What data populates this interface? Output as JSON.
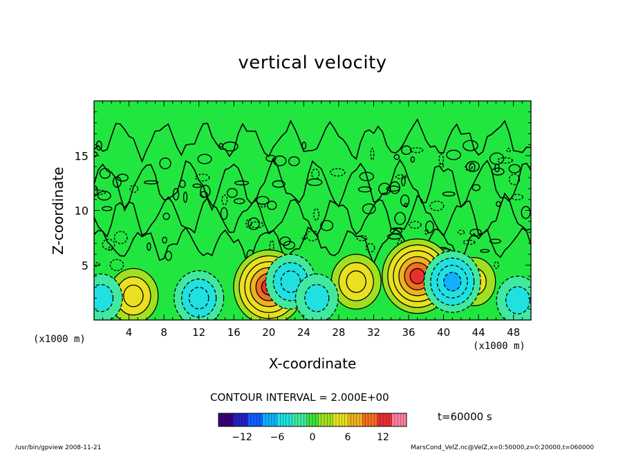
{
  "window": {
    "footer_left": "/usr/bin/gpview   2008-11-21",
    "footer_right": "MarsCond_VelZ.nc@VelZ,x=0:50000,z=0:20000,t=060000"
  },
  "chart_data": {
    "type": "heatmap",
    "title": "vertical velocity",
    "xlabel": "X-coordinate",
    "ylabel": "Z-coordinate",
    "x_unit_left": "(x1000 m)",
    "x_unit_right": "(x1000 m)",
    "xlim": [
      0,
      50
    ],
    "ylim": [
      0,
      20
    ],
    "x_ticks": [
      4,
      8,
      12,
      16,
      20,
      24,
      28,
      32,
      36,
      40,
      44,
      48
    ],
    "y_ticks": [
      5,
      10,
      15
    ],
    "contour_interval_label": "CONTOUR INTERVAL = 2.000E+00",
    "time_label": "t=60000 s",
    "colorbar": {
      "min": -16,
      "max": 16,
      "tick_values": [
        -12,
        -6,
        0,
        6,
        12
      ],
      "tick_labels": [
        "−12",
        "−6",
        "0",
        "6",
        "12"
      ],
      "colors": [
        "#3a007a",
        "#2a20c0",
        "#1060ff",
        "#10b0ff",
        "#20e0e0",
        "#40e8a0",
        "#40e040",
        "#a0e020",
        "#e8e020",
        "#f0b020",
        "#f07020",
        "#e83030",
        "#ff80a0"
      ]
    },
    "background_color": "#22e640",
    "features": [
      {
        "kind": "updraft",
        "x": 20.0,
        "z": 3.0,
        "peak": 12
      },
      {
        "kind": "updraft",
        "x": 37.0,
        "z": 4.0,
        "peak": 12
      },
      {
        "kind": "updraft",
        "x": 4.5,
        "z": 2.2,
        "peak": 6
      },
      {
        "kind": "updraft",
        "x": 30.0,
        "z": 3.5,
        "peak": 6
      },
      {
        "kind": "updraft",
        "x": 43.5,
        "z": 3.5,
        "peak": 4
      },
      {
        "kind": "downdraft",
        "x": 12.0,
        "z": 2.0,
        "peak": -6
      },
      {
        "kind": "downdraft",
        "x": 22.5,
        "z": 3.5,
        "peak": -6
      },
      {
        "kind": "downdraft",
        "x": 25.5,
        "z": 2.0,
        "peak": -4
      },
      {
        "kind": "downdraft",
        "x": 41.0,
        "z": 3.5,
        "peak": -8
      },
      {
        "kind": "downdraft",
        "x": 48.5,
        "z": 1.8,
        "peak": -4
      },
      {
        "kind": "downdraft",
        "x": 0.8,
        "z": 2.0,
        "peak": -4
      }
    ]
  }
}
